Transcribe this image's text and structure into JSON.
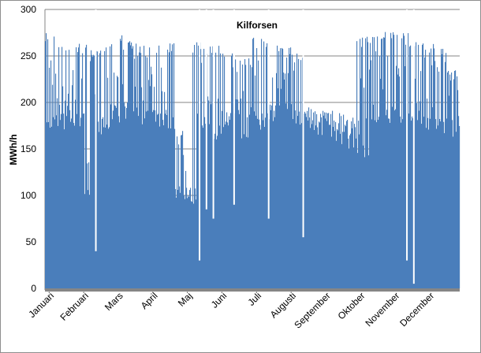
{
  "colors": {
    "series": "#4a7ebb",
    "grid": "#868686",
    "baseline": "#868686"
  },
  "chart_data": {
    "type": "area",
    "title": "Kilforsen",
    "ylabel": "MWh/h",
    "xlabel": "",
    "ylim": [
      0,
      300
    ],
    "yticks": [
      0,
      50,
      100,
      150,
      200,
      250,
      300
    ],
    "grid": true,
    "legend": "none",
    "months": [
      "Januari",
      "Februari",
      "Mars",
      "April",
      "Maj",
      "Juni",
      "Juli",
      "Augusti",
      "September",
      "Oktober",
      "November",
      "December"
    ],
    "series": [
      {
        "color": "#4a7ebb",
        "x_unit": "week",
        "envelope_max": [
          277,
          263,
          264,
          262,
          264,
          275,
          266,
          261,
          264,
          265,
          172,
          265,
          261,
          263,
          253,
          248,
          272,
          264,
          262,
          253,
          195,
          192,
          192,
          185,
          271,
          275,
          276,
          277,
          268,
          264,
          262,
          235
        ],
        "typical_low": [
          168,
          170,
          170,
          96,
          165,
          178,
          182,
          175,
          172,
          170,
          95,
          90,
          165,
          160,
          172,
          150,
          170,
          178,
          180,
          176,
          170,
          165,
          155,
          150,
          140,
          168,
          175,
          178,
          180,
          170,
          165,
          160
        ],
        "deep_dips": [
          {
            "month": "Februari",
            "value": 40
          },
          {
            "month": "Maj",
            "value": 30
          },
          {
            "month": "Maj",
            "value": 85
          },
          {
            "month": "Maj",
            "value": 75
          },
          {
            "month": "Juni",
            "value": 90
          },
          {
            "month": "Juli",
            "value": 75
          },
          {
            "month": "Augusti",
            "value": 55
          },
          {
            "month": "November",
            "value": 30
          },
          {
            "month": "November",
            "value": 5
          }
        ]
      }
    ]
  }
}
